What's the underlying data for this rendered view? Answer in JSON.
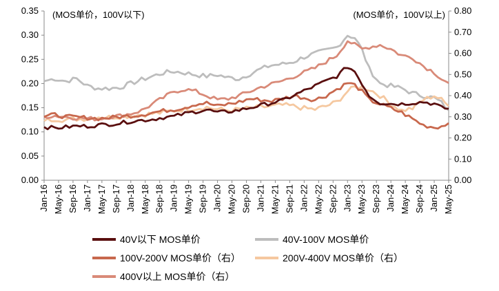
{
  "chart_data": {
    "type": "line",
    "left_axis": {
      "note": "(MOS单价，100V以下)",
      "ylim": [
        0,
        0.35
      ],
      "ticks": [
        "0.00",
        "0.05",
        "0.10",
        "0.15",
        "0.20",
        "0.25",
        "0.30",
        "0.35"
      ]
    },
    "right_axis": {
      "note": "(MOS单价，100V以上)",
      "ylim": [
        0,
        0.8
      ],
      "ticks": [
        "0.00",
        "0.10",
        "0.20",
        "0.30",
        "0.40",
        "0.50",
        "0.60",
        "0.70",
        "0.80"
      ]
    },
    "x_tick_labels": [
      "Jan-16",
      "May-16",
      "Sep-16",
      "Jan-17",
      "May-17",
      "Sep-17",
      "Jan-18",
      "May-18",
      "Sep-18",
      "Jan-19",
      "May-19",
      "Sep-19",
      "Jan-20",
      "May-20",
      "Sep-20",
      "Jan-21",
      "May-21",
      "Sep-21",
      "Jan-22",
      "May-22",
      "Sep-22",
      "Jan-23",
      "May-23",
      "Sep-23",
      "Jan-24",
      "May-24",
      "Sep-24",
      "Jan-25",
      "May-25"
    ],
    "grid": false,
    "legend_position": "bottom",
    "series": [
      {
        "name": "40V以下 MOS单价",
        "axis": "left",
        "color": "#5a0f0f",
        "anchors": [
          [
            0,
            0.11
          ],
          [
            3,
            0.108
          ],
          [
            6,
            0.11
          ],
          [
            9,
            0.112
          ],
          [
            12,
            0.112
          ],
          [
            15,
            0.114
          ],
          [
            18,
            0.116
          ],
          [
            21,
            0.118
          ],
          [
            24,
            0.122
          ],
          [
            27,
            0.124
          ],
          [
            30,
            0.126
          ],
          [
            33,
            0.13
          ],
          [
            36,
            0.132
          ],
          [
            39,
            0.138
          ],
          [
            42,
            0.142
          ],
          [
            45,
            0.146
          ],
          [
            48,
            0.14
          ],
          [
            51,
            0.142
          ],
          [
            54,
            0.145
          ],
          [
            57,
            0.15
          ],
          [
            60,
            0.155
          ],
          [
            63,
            0.16
          ],
          [
            66,
            0.165
          ],
          [
            69,
            0.175
          ],
          [
            72,
            0.185
          ],
          [
            75,
            0.195
          ],
          [
            78,
            0.205
          ],
          [
            81,
            0.215
          ],
          [
            84,
            0.235
          ],
          [
            86,
            0.225
          ],
          [
            88,
            0.2
          ],
          [
            90,
            0.175
          ],
          [
            93,
            0.16
          ],
          [
            96,
            0.158
          ],
          [
            99,
            0.158
          ],
          [
            102,
            0.16
          ],
          [
            105,
            0.162
          ],
          [
            108,
            0.158
          ],
          [
            110,
            0.15
          ],
          [
            112,
            0.148
          ]
        ],
        "noise": 0.004
      },
      {
        "name": "40V-100V MOS单价",
        "axis": "left",
        "color": "#bdbdbd",
        "anchors": [
          [
            0,
            0.205
          ],
          [
            3,
            0.21
          ],
          [
            6,
            0.205
          ],
          [
            9,
            0.21
          ],
          [
            12,
            0.195
          ],
          [
            15,
            0.19
          ],
          [
            18,
            0.19
          ],
          [
            21,
            0.192
          ],
          [
            24,
            0.2
          ],
          [
            27,
            0.208
          ],
          [
            30,
            0.215
          ],
          [
            33,
            0.222
          ],
          [
            36,
            0.225
          ],
          [
            39,
            0.222
          ],
          [
            42,
            0.218
          ],
          [
            45,
            0.215
          ],
          [
            48,
            0.218
          ],
          [
            51,
            0.212
          ],
          [
            54,
            0.21
          ],
          [
            57,
            0.22
          ],
          [
            60,
            0.23
          ],
          [
            63,
            0.238
          ],
          [
            66,
            0.24
          ],
          [
            69,
            0.245
          ],
          [
            72,
            0.255
          ],
          [
            75,
            0.262
          ],
          [
            78,
            0.268
          ],
          [
            81,
            0.275
          ],
          [
            84,
            0.3
          ],
          [
            86,
            0.295
          ],
          [
            88,
            0.27
          ],
          [
            90,
            0.23
          ],
          [
            93,
            0.2
          ],
          [
            96,
            0.195
          ],
          [
            99,
            0.19
          ],
          [
            102,
            0.18
          ],
          [
            105,
            0.175
          ],
          [
            108,
            0.17
          ],
          [
            110,
            0.16
          ],
          [
            112,
            0.145
          ]
        ],
        "noise": 0.005
      },
      {
        "name": "100V-200V MOS单价（右）",
        "axis": "right",
        "color": "#c8684d",
        "anchors": [
          [
            0,
            0.3
          ],
          [
            3,
            0.31
          ],
          [
            6,
            0.3
          ],
          [
            9,
            0.298
          ],
          [
            12,
            0.295
          ],
          [
            15,
            0.292
          ],
          [
            18,
            0.295
          ],
          [
            21,
            0.3
          ],
          [
            24,
            0.305
          ],
          [
            27,
            0.31
          ],
          [
            30,
            0.32
          ],
          [
            33,
            0.328
          ],
          [
            36,
            0.335
          ],
          [
            39,
            0.345
          ],
          [
            42,
            0.36
          ],
          [
            45,
            0.365
          ],
          [
            48,
            0.35
          ],
          [
            51,
            0.36
          ],
          [
            54,
            0.37
          ],
          [
            57,
            0.385
          ],
          [
            60,
            0.38
          ],
          [
            63,
            0.375
          ],
          [
            66,
            0.385
          ],
          [
            69,
            0.4
          ],
          [
            72,
            0.39
          ],
          [
            75,
            0.38
          ],
          [
            78,
            0.4
          ],
          [
            81,
            0.43
          ],
          [
            84,
            0.46
          ],
          [
            86,
            0.45
          ],
          [
            88,
            0.42
          ],
          [
            90,
            0.38
          ],
          [
            93,
            0.36
          ],
          [
            96,
            0.34
          ],
          [
            99,
            0.32
          ],
          [
            102,
            0.29
          ],
          [
            105,
            0.26
          ],
          [
            108,
            0.25
          ],
          [
            110,
            0.255
          ],
          [
            112,
            0.27
          ]
        ],
        "noise": 0.01
      },
      {
        "name": "200V-400V MOS单价（右）",
        "axis": "right",
        "color": "#f5c8a0",
        "anchors": [
          [
            0,
            0.28
          ],
          [
            3,
            0.29
          ],
          [
            6,
            0.285
          ],
          [
            9,
            0.29
          ],
          [
            12,
            0.292
          ],
          [
            15,
            0.3
          ],
          [
            18,
            0.298
          ],
          [
            21,
            0.302
          ],
          [
            24,
            0.305
          ],
          [
            27,
            0.31
          ],
          [
            30,
            0.315
          ],
          [
            33,
            0.32
          ],
          [
            36,
            0.33
          ],
          [
            39,
            0.335
          ],
          [
            42,
            0.34
          ],
          [
            45,
            0.345
          ],
          [
            48,
            0.335
          ],
          [
            51,
            0.33
          ],
          [
            54,
            0.335
          ],
          [
            57,
            0.34
          ],
          [
            60,
            0.345
          ],
          [
            63,
            0.35
          ],
          [
            66,
            0.355
          ],
          [
            69,
            0.35
          ],
          [
            72,
            0.34
          ],
          [
            75,
            0.335
          ],
          [
            78,
            0.35
          ],
          [
            81,
            0.37
          ],
          [
            84,
            0.42
          ],
          [
            86,
            0.44
          ],
          [
            88,
            0.44
          ],
          [
            90,
            0.43
          ],
          [
            93,
            0.4
          ],
          [
            96,
            0.36
          ],
          [
            99,
            0.33
          ],
          [
            102,
            0.34
          ],
          [
            105,
            0.38
          ],
          [
            108,
            0.4
          ],
          [
            110,
            0.38
          ],
          [
            112,
            0.35
          ]
        ],
        "noise": 0.012
      },
      {
        "name": "400V以上 MOS单价（右）",
        "axis": "right",
        "color": "#d98a78",
        "anchors": [
          [
            0,
            0.3
          ],
          [
            3,
            0.305
          ],
          [
            6,
            0.3
          ],
          [
            9,
            0.295
          ],
          [
            12,
            0.292
          ],
          [
            15,
            0.29
          ],
          [
            18,
            0.3
          ],
          [
            21,
            0.305
          ],
          [
            24,
            0.315
          ],
          [
            27,
            0.33
          ],
          [
            30,
            0.36
          ],
          [
            33,
            0.39
          ],
          [
            36,
            0.42
          ],
          [
            39,
            0.43
          ],
          [
            42,
            0.42
          ],
          [
            45,
            0.4
          ],
          [
            48,
            0.38
          ],
          [
            51,
            0.385
          ],
          [
            54,
            0.4
          ],
          [
            57,
            0.42
          ],
          [
            60,
            0.44
          ],
          [
            63,
            0.455
          ],
          [
            66,
            0.47
          ],
          [
            69,
            0.49
          ],
          [
            72,
            0.51
          ],
          [
            75,
            0.53
          ],
          [
            78,
            0.56
          ],
          [
            81,
            0.59
          ],
          [
            84,
            0.66
          ],
          [
            86,
            0.64
          ],
          [
            88,
            0.62
          ],
          [
            90,
            0.63
          ],
          [
            93,
            0.64
          ],
          [
            96,
            0.62
          ],
          [
            99,
            0.59
          ],
          [
            102,
            0.58
          ],
          [
            105,
            0.54
          ],
          [
            108,
            0.51
          ],
          [
            110,
            0.48
          ],
          [
            112,
            0.46
          ]
        ],
        "noise": 0.01
      }
    ]
  },
  "legend": {
    "items": [
      {
        "label": "40V以下 MOS单价",
        "color": "#5a0f0f"
      },
      {
        "label": "40V-100V MOS单价",
        "color": "#bdbdbd"
      },
      {
        "label": "100V-200V MOS单价（右）",
        "color": "#c8684d"
      },
      {
        "label": "200V-400V MOS单价（右）",
        "color": "#f5c8a0"
      },
      {
        "label": "400V以上 MOS单价（右）",
        "color": "#d98a78"
      }
    ]
  }
}
